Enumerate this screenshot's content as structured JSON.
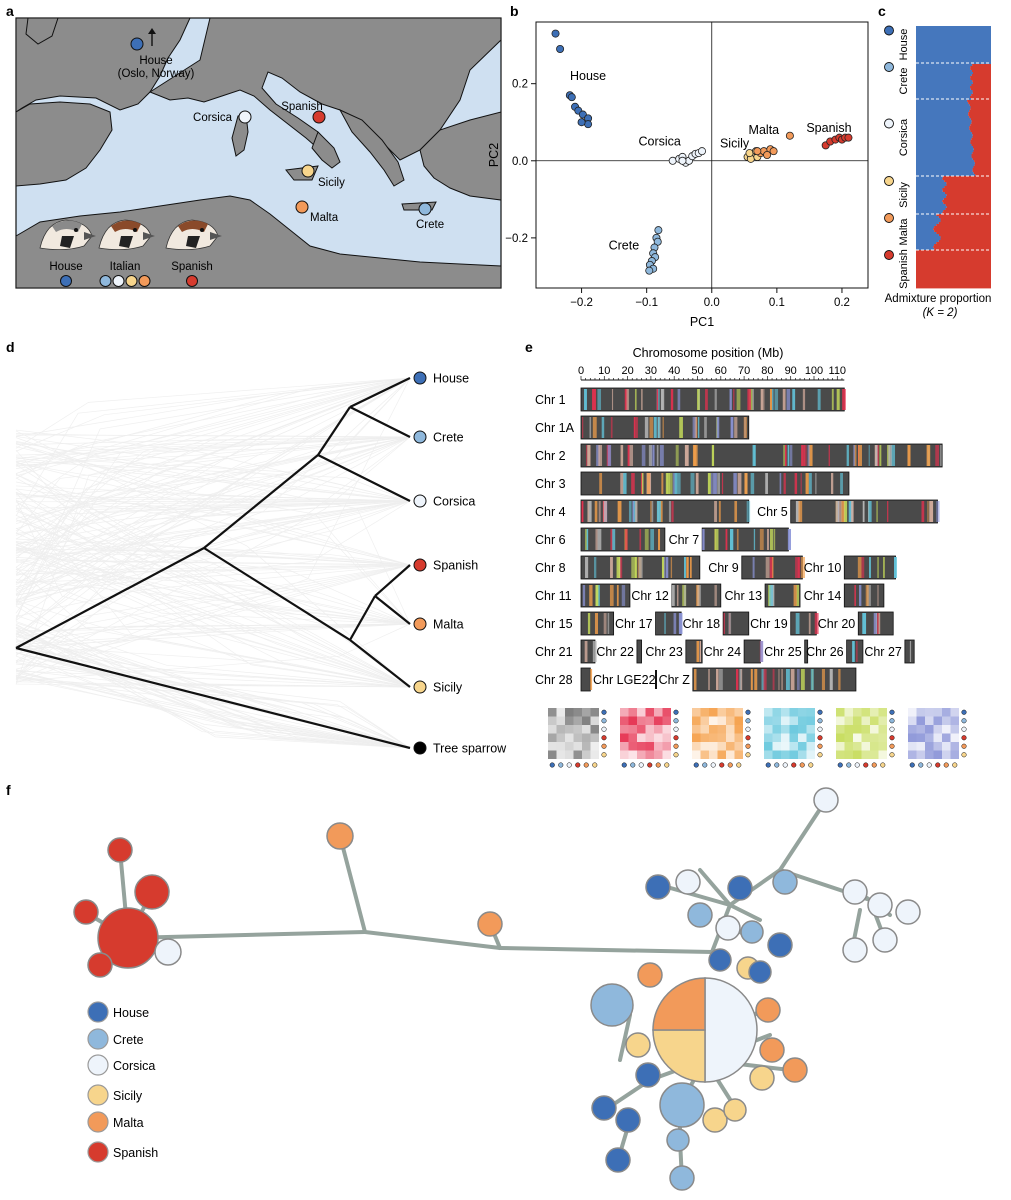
{
  "panel_labels": {
    "a": "a",
    "b": "b",
    "c": "c",
    "d": "d",
    "e": "e",
    "f": "f"
  },
  "colors": {
    "house": "#3d6fb6",
    "crete": "#8fb8dc",
    "corsica": "#eef4fb",
    "sicily": "#f7d58c",
    "malta": "#f29a5a",
    "spanish": "#d63b2e",
    "tree": "#000000",
    "sea": "#cfe0f1",
    "land": "#8c8c8c"
  },
  "map": {
    "house_label": "House",
    "house_sub": "(Oslo, Norway)",
    "sites": [
      {
        "name": "Corsica",
        "pop": "corsica"
      },
      {
        "name": "Spanish",
        "pop": "spanish"
      },
      {
        "name": "Sicily",
        "pop": "sicily"
      },
      {
        "name": "Malta",
        "pop": "malta"
      },
      {
        "name": "Crete",
        "pop": "crete"
      }
    ],
    "legend": [
      {
        "name": "House",
        "pops": [
          "house"
        ]
      },
      {
        "name": "Italian",
        "pops": [
          "crete",
          "corsica",
          "sicily",
          "malta"
        ]
      },
      {
        "name": "Spanish",
        "pops": [
          "spanish"
        ]
      }
    ]
  },
  "chart_data": [
    {
      "type": "scatter",
      "xlabel": "PC1",
      "ylabel": "PC2",
      "xlim": [
        -0.27,
        0.24
      ],
      "ylim": [
        -0.33,
        0.36
      ],
      "xticks": [
        -0.2,
        -0.1,
        0.0,
        0.1,
        0.2
      ],
      "yticks": [
        -0.2,
        0.0,
        0.2
      ],
      "xtick_labels": [
        "−0.2",
        "−0.1",
        "0.0",
        "0.1",
        "0.2"
      ],
      "ytick_labels": [
        "−0.2",
        "0.0",
        "0.2"
      ],
      "group_labels": [
        {
          "text": "House",
          "x": -0.19,
          "y": 0.21
        },
        {
          "text": "Corsica",
          "x": -0.08,
          "y": 0.04
        },
        {
          "text": "Sicily",
          "x": 0.035,
          "y": 0.035
        },
        {
          "text": "Malta",
          "x": 0.08,
          "y": 0.07
        },
        {
          "text": "Spanish",
          "x": 0.18,
          "y": 0.075
        },
        {
          "text": "Crete",
          "x": -0.135,
          "y": -0.23
        }
      ],
      "series": [
        {
          "pop": "house",
          "points": [
            [
              -0.24,
              0.33
            ],
            [
              -0.233,
              0.29
            ],
            [
              -0.218,
              0.17
            ],
            [
              -0.215,
              0.165
            ],
            [
              -0.21,
              0.14
            ],
            [
              -0.205,
              0.13
            ],
            [
              -0.198,
              0.12
            ],
            [
              -0.19,
              0.11
            ],
            [
              -0.19,
              0.095
            ],
            [
              -0.2,
              0.1
            ]
          ]
        },
        {
          "pop": "crete",
          "points": [
            [
              -0.082,
              -0.18
            ],
            [
              -0.085,
              -0.2
            ],
            [
              -0.083,
              -0.21
            ],
            [
              -0.088,
              -0.225
            ],
            [
              -0.09,
              -0.24
            ],
            [
              -0.087,
              -0.25
            ],
            [
              -0.092,
              -0.26
            ],
            [
              -0.095,
              -0.27
            ],
            [
              -0.09,
              -0.28
            ],
            [
              -0.096,
              -0.285
            ]
          ]
        },
        {
          "pop": "corsica",
          "points": [
            [
              -0.06,
              0.0
            ],
            [
              -0.05,
              0.005
            ],
            [
              -0.045,
              0.01
            ],
            [
              -0.04,
              -0.005
            ],
            [
              -0.035,
              0.0
            ],
            [
              -0.03,
              0.012
            ],
            [
              -0.025,
              0.018
            ],
            [
              -0.02,
              0.02
            ],
            [
              -0.015,
              0.025
            ],
            [
              -0.045,
              0.0
            ]
          ]
        },
        {
          "pop": "sicily",
          "points": [
            [
              0.055,
              0.01
            ],
            [
              0.06,
              0.015
            ],
            [
              0.065,
              0.02
            ],
            [
              0.06,
              0.005
            ],
            [
              0.07,
              0.01
            ],
            [
              0.058,
              0.02
            ],
            [
              0.068,
              0.025
            ]
          ]
        },
        {
          "pop": "malta",
          "points": [
            [
              0.075,
              0.02
            ],
            [
              0.08,
              0.025
            ],
            [
              0.09,
              0.03
            ],
            [
              0.095,
              0.025
            ],
            [
              0.12,
              0.065
            ],
            [
              0.085,
              0.015
            ],
            [
              0.07,
              0.025
            ]
          ]
        },
        {
          "pop": "spanish",
          "points": [
            [
              0.175,
              0.04
            ],
            [
              0.182,
              0.05
            ],
            [
              0.19,
              0.055
            ],
            [
              0.196,
              0.06
            ],
            [
              0.2,
              0.055
            ],
            [
              0.205,
              0.06
            ],
            [
              0.21,
              0.06
            ]
          ]
        }
      ]
    },
    {
      "type": "bar",
      "xlabel": "Admixture proportion",
      "xlabel_k": "(K = 2)",
      "populations": [
        "House",
        "Crete",
        "Corsica",
        "Sicily",
        "Malta",
        "Spanish"
      ]
    },
    {
      "type": "line",
      "tips": [
        "House",
        "Crete",
        "Corsica",
        "Spanish",
        "Malta",
        "Sicily",
        "Tree sparrow"
      ]
    },
    {
      "type": "bar",
      "title": "Chromosome position (Mb)",
      "xticks": [
        0,
        10,
        20,
        30,
        40,
        50,
        60,
        70,
        80,
        90,
        100,
        110
      ],
      "chromosomes": [
        {
          "name": "Chr 1",
          "row": 0,
          "start": 0,
          "length": 113
        },
        {
          "name": "Chr 1A",
          "row": 1,
          "start": 0,
          "length": 72
        },
        {
          "name": "Chr 2",
          "row": 2,
          "start": 0,
          "length": 155
        },
        {
          "name": "Chr 3",
          "row": 3,
          "start": 0,
          "length": 115
        },
        {
          "name": "Chr 4",
          "row": 4,
          "start": 0,
          "length": 72
        },
        {
          "name": "Chr 5",
          "row": 4,
          "start": 90,
          "length": 63
        },
        {
          "name": "Chr 6",
          "row": 5,
          "start": 0,
          "length": 36
        },
        {
          "name": "Chr 7",
          "row": 5,
          "start": 52,
          "length": 37
        },
        {
          "name": "Chr 8",
          "row": 6,
          "start": 0,
          "length": 51
        },
        {
          "name": "Chr 9",
          "row": 6,
          "start": 69,
          "length": 26
        },
        {
          "name": "Chr 10",
          "row": 6,
          "start": 113,
          "length": 22
        },
        {
          "name": "Chr 11",
          "row": 7,
          "start": 0,
          "length": 21
        },
        {
          "name": "Chr 12",
          "row": 7,
          "start": 39,
          "length": 21
        },
        {
          "name": "Chr 13",
          "row": 7,
          "start": 79,
          "length": 15
        },
        {
          "name": "Chr 14",
          "row": 7,
          "start": 113,
          "length": 17
        },
        {
          "name": "Chr 15",
          "row": 8,
          "start": 0,
          "length": 14
        },
        {
          "name": "Chr 17",
          "row": 8,
          "start": 32,
          "length": 11
        },
        {
          "name": "Chr 18",
          "row": 8,
          "start": 61,
          "length": 11
        },
        {
          "name": "Chr 19",
          "row": 8,
          "start": 90,
          "length": 11
        },
        {
          "name": "Chr 20",
          "row": 8,
          "start": 119,
          "length": 15
        },
        {
          "name": "Chr 21",
          "row": 9,
          "start": 0,
          "length": 6
        },
        {
          "name": "Chr 22",
          "row": 9,
          "start": 24,
          "length": 2
        },
        {
          "name": "Chr 23",
          "row": 9,
          "start": 45,
          "length": 7
        },
        {
          "name": "Chr 24",
          "row": 9,
          "start": 70,
          "length": 7
        },
        {
          "name": "Chr 25",
          "row": 9,
          "start": 96,
          "length": 1
        },
        {
          "name": "Chr 26",
          "row": 9,
          "start": 114,
          "length": 7
        },
        {
          "name": "Chr 27",
          "row": 9,
          "start": 139,
          "length": 4
        },
        {
          "name": "Chr 28",
          "row": 10,
          "start": 0,
          "length": 4
        },
        {
          "name": "Chr LGE22",
          "row": 10,
          "start": 0,
          "length": 0
        },
        {
          "name": "Chr Z",
          "row": 10,
          "start": 48,
          "length": 70
        }
      ],
      "matrix_palettes": [
        "#7a7a7a",
        "#e5304f",
        "#f5a04a",
        "#63c6dc",
        "#c6dc5a",
        "#8c95d8"
      ]
    },
    {
      "type": "network",
      "legend": [
        {
          "name": "House",
          "pop": "house"
        },
        {
          "name": "Crete",
          "pop": "crete"
        },
        {
          "name": "Corsica",
          "pop": "corsica"
        },
        {
          "name": "Sicily",
          "pop": "sicily"
        },
        {
          "name": "Malta",
          "pop": "malta"
        },
        {
          "name": "Spanish",
          "pop": "spanish"
        }
      ]
    }
  ]
}
